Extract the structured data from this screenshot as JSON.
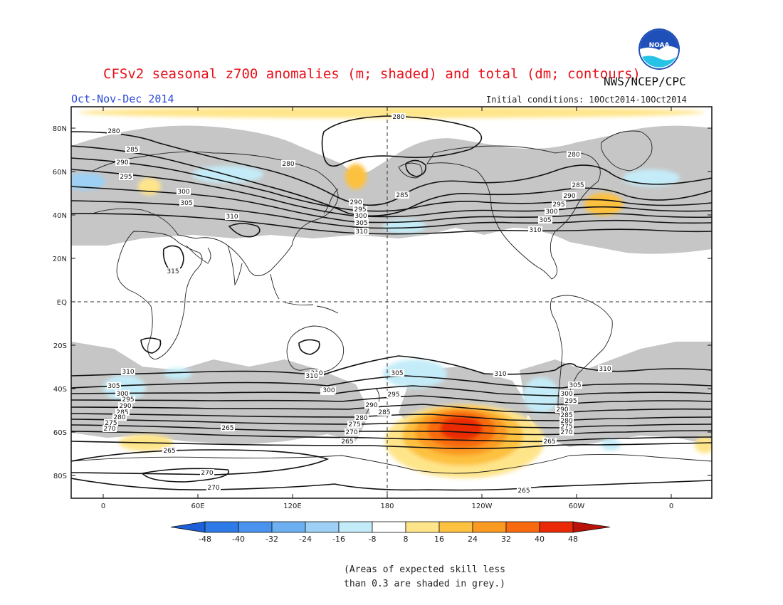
{
  "header": {
    "title": "CFSv2 seasonal z700 anomalies (m; shaded) and total (dm; contours)",
    "season": "Oct-Nov-Dec 2014",
    "org": "NWS/NCEP/CPC",
    "initial_conditions": "Initial conditions: 10Oct2014-10Oct2014",
    "logo_text": "NOAA"
  },
  "map": {
    "lat_labels": [
      "80N",
      "60N",
      "40N",
      "20N",
      "EQ",
      "20S",
      "40S",
      "60S",
      "80S"
    ],
    "lon_labels": [
      "0",
      "60E",
      "120E",
      "180",
      "120W",
      "60W",
      "0"
    ],
    "contours_north": [
      {
        "label": "280"
      },
      {
        "label": "285"
      },
      {
        "label": "290"
      },
      {
        "label": "295"
      },
      {
        "label": "300"
      },
      {
        "label": "305"
      },
      {
        "label": "310"
      }
    ],
    "contours_south": [
      {
        "label": "310"
      },
      {
        "label": "305"
      },
      {
        "label": "300"
      },
      {
        "label": "295"
      },
      {
        "label": "290"
      },
      {
        "label": "285"
      },
      {
        "label": "280"
      },
      {
        "label": "275"
      },
      {
        "label": "270"
      },
      {
        "label": "265"
      }
    ],
    "extra_labels": [
      "315",
      "270"
    ]
  },
  "colorbar": {
    "ticks": [
      "-48",
      "-40",
      "-32",
      "-24",
      "-16",
      "-8",
      "8",
      "16",
      "24",
      "32",
      "40",
      "48"
    ],
    "colors": [
      "#1c5fd6",
      "#2e7ae6",
      "#4993ee",
      "#6db0f2",
      "#9dd0f4",
      "#c4ecf8",
      "#ffffff",
      "#ffe58a",
      "#fdc140",
      "#fb9a20",
      "#f86a10",
      "#ea2a06",
      "#b8120a"
    ],
    "units": "m"
  },
  "footnote": {
    "line1": "(Areas of expected skill less",
    "line2": "than 0.3 are shaded in grey.)"
  }
}
